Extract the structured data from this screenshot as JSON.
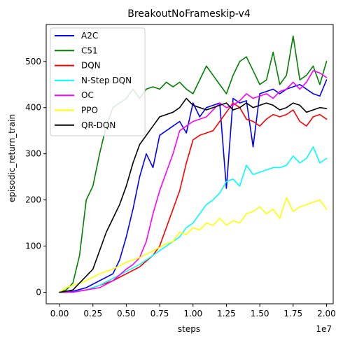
{
  "chart_data": {
    "type": "line",
    "title": "BreakoutNoFrameskip-v4",
    "xlabel": "steps",
    "ylabel": "episodic_return_train",
    "x_offset_label": "1e7",
    "xlim": [
      -0.1,
      2.05
    ],
    "ylim": [
      -25,
      580
    ],
    "x_tick_values": [
      0.0,
      0.25,
      0.5,
      0.75,
      1.0,
      1.25,
      1.5,
      1.75,
      2.0
    ],
    "x_tick_labels": [
      "0.00",
      "0.25",
      "0.50",
      "0.75",
      "1.00",
      "1.25",
      "1.50",
      "1.75",
      "2.00"
    ],
    "y_tick_values": [
      0,
      100,
      200,
      300,
      400,
      500
    ],
    "y_tick_labels": [
      "0",
      "100",
      "200",
      "300",
      "400",
      "500"
    ],
    "grid": false,
    "legend_position": "top-left",
    "series": [
      {
        "name": "A2C",
        "color": "#0000ff",
        "points": [
          [
            0,
            0
          ],
          [
            0.1,
            2
          ],
          [
            0.2,
            10
          ],
          [
            0.3,
            25
          ],
          [
            0.4,
            40
          ],
          [
            0.45,
            70
          ],
          [
            0.5,
            120
          ],
          [
            0.55,
            180
          ],
          [
            0.6,
            250
          ],
          [
            0.65,
            300
          ],
          [
            0.7,
            270
          ],
          [
            0.75,
            340
          ],
          [
            0.8,
            350
          ],
          [
            0.85,
            360
          ],
          [
            0.9,
            370
          ],
          [
            0.95,
            345
          ],
          [
            1.0,
            410
          ],
          [
            1.05,
            380
          ],
          [
            1.1,
            400
          ],
          [
            1.15,
            405
          ],
          [
            1.2,
            410
          ],
          [
            1.25,
            225
          ],
          [
            1.3,
            420
          ],
          [
            1.35,
            410
          ],
          [
            1.4,
            415
          ],
          [
            1.45,
            315
          ],
          [
            1.5,
            430
          ],
          [
            1.55,
            435
          ],
          [
            1.6,
            440
          ],
          [
            1.65,
            430
          ],
          [
            1.7,
            440
          ],
          [
            1.75,
            445
          ],
          [
            1.8,
            450
          ],
          [
            1.85,
            440
          ],
          [
            1.9,
            430
          ],
          [
            1.95,
            425
          ],
          [
            2.0,
            460
          ]
        ]
      },
      {
        "name": "C51",
        "color": "#008000",
        "points": [
          [
            0,
            0
          ],
          [
            0.05,
            5
          ],
          [
            0.1,
            20
          ],
          [
            0.15,
            80
          ],
          [
            0.2,
            200
          ],
          [
            0.25,
            230
          ],
          [
            0.3,
            300
          ],
          [
            0.35,
            360
          ],
          [
            0.4,
            400
          ],
          [
            0.45,
            410
          ],
          [
            0.5,
            420
          ],
          [
            0.55,
            440
          ],
          [
            0.6,
            420
          ],
          [
            0.65,
            440
          ],
          [
            0.7,
            445
          ],
          [
            0.75,
            440
          ],
          [
            0.8,
            455
          ],
          [
            0.85,
            445
          ],
          [
            0.9,
            455
          ],
          [
            0.95,
            440
          ],
          [
            1.0,
            430
          ],
          [
            1.05,
            460
          ],
          [
            1.1,
            490
          ],
          [
            1.15,
            470
          ],
          [
            1.2,
            450
          ],
          [
            1.25,
            430
          ],
          [
            1.3,
            470
          ],
          [
            1.35,
            500
          ],
          [
            1.4,
            510
          ],
          [
            1.45,
            480
          ],
          [
            1.5,
            450
          ],
          [
            1.55,
            460
          ],
          [
            1.6,
            520
          ],
          [
            1.65,
            450
          ],
          [
            1.7,
            470
          ],
          [
            1.75,
            555
          ],
          [
            1.8,
            460
          ],
          [
            1.85,
            470
          ],
          [
            1.9,
            490
          ],
          [
            1.95,
            450
          ],
          [
            2.0,
            500
          ]
        ]
      },
      {
        "name": "DQN",
        "color": "#ff0000",
        "points": [
          [
            0,
            0
          ],
          [
            0.1,
            0
          ],
          [
            0.2,
            5
          ],
          [
            0.3,
            15
          ],
          [
            0.4,
            25
          ],
          [
            0.5,
            40
          ],
          [
            0.6,
            55
          ],
          [
            0.7,
            80
          ],
          [
            0.75,
            100
          ],
          [
            0.8,
            140
          ],
          [
            0.85,
            180
          ],
          [
            0.9,
            220
          ],
          [
            0.95,
            280
          ],
          [
            1.0,
            330
          ],
          [
            1.05,
            340
          ],
          [
            1.1,
            345
          ],
          [
            1.15,
            350
          ],
          [
            1.2,
            370
          ],
          [
            1.25,
            390
          ],
          [
            1.3,
            410
          ],
          [
            1.35,
            400
          ],
          [
            1.4,
            375
          ],
          [
            1.45,
            370
          ],
          [
            1.5,
            360
          ],
          [
            1.55,
            375
          ],
          [
            1.6,
            385
          ],
          [
            1.65,
            380
          ],
          [
            1.7,
            385
          ],
          [
            1.75,
            395
          ],
          [
            1.8,
            370
          ],
          [
            1.85,
            360
          ],
          [
            1.9,
            380
          ],
          [
            1.95,
            385
          ],
          [
            2.0,
            375
          ]
        ]
      },
      {
        "name": "N-Step DQN",
        "color": "#00ffff",
        "points": [
          [
            0,
            0
          ],
          [
            0.1,
            0
          ],
          [
            0.2,
            5
          ],
          [
            0.3,
            15
          ],
          [
            0.4,
            30
          ],
          [
            0.5,
            45
          ],
          [
            0.6,
            60
          ],
          [
            0.7,
            80
          ],
          [
            0.8,
            100
          ],
          [
            0.9,
            120
          ],
          [
            0.95,
            140
          ],
          [
            1.0,
            150
          ],
          [
            1.05,
            170
          ],
          [
            1.1,
            190
          ],
          [
            1.15,
            200
          ],
          [
            1.2,
            215
          ],
          [
            1.25,
            240
          ],
          [
            1.3,
            245
          ],
          [
            1.35,
            230
          ],
          [
            1.4,
            275
          ],
          [
            1.45,
            255
          ],
          [
            1.5,
            260
          ],
          [
            1.55,
            265
          ],
          [
            1.6,
            270
          ],
          [
            1.65,
            270
          ],
          [
            1.7,
            275
          ],
          [
            1.75,
            295
          ],
          [
            1.8,
            280
          ],
          [
            1.85,
            290
          ],
          [
            1.9,
            315
          ],
          [
            1.95,
            280
          ],
          [
            2.0,
            290
          ]
        ]
      },
      {
        "name": "OC",
        "color": "#ff00ff",
        "points": [
          [
            0,
            0
          ],
          [
            0.1,
            0
          ],
          [
            0.2,
            5
          ],
          [
            0.3,
            10
          ],
          [
            0.4,
            25
          ],
          [
            0.5,
            50
          ],
          [
            0.55,
            60
          ],
          [
            0.6,
            75
          ],
          [
            0.65,
            110
          ],
          [
            0.7,
            170
          ],
          [
            0.75,
            220
          ],
          [
            0.8,
            260
          ],
          [
            0.85,
            300
          ],
          [
            0.9,
            350
          ],
          [
            0.95,
            360
          ],
          [
            1.0,
            370
          ],
          [
            1.05,
            375
          ],
          [
            1.1,
            380
          ],
          [
            1.15,
            395
          ],
          [
            1.2,
            410
          ],
          [
            1.25,
            400
          ],
          [
            1.3,
            405
          ],
          [
            1.35,
            415
          ],
          [
            1.4,
            430
          ],
          [
            1.45,
            420
          ],
          [
            1.5,
            425
          ],
          [
            1.55,
            430
          ],
          [
            1.6,
            420
          ],
          [
            1.65,
            435
          ],
          [
            1.7,
            440
          ],
          [
            1.75,
            455
          ],
          [
            1.8,
            440
          ],
          [
            1.85,
            455
          ],
          [
            1.9,
            480
          ],
          [
            1.95,
            475
          ],
          [
            2.0,
            465
          ]
        ]
      },
      {
        "name": "PPO",
        "color": "#ffff00",
        "points": [
          [
            0,
            0
          ],
          [
            0.05,
            10
          ],
          [
            0.1,
            15
          ],
          [
            0.15,
            20
          ],
          [
            0.2,
            25
          ],
          [
            0.3,
            40
          ],
          [
            0.4,
            50
          ],
          [
            0.5,
            65
          ],
          [
            0.6,
            75
          ],
          [
            0.7,
            90
          ],
          [
            0.8,
            105
          ],
          [
            0.85,
            110
          ],
          [
            0.9,
            130
          ],
          [
            0.95,
            125
          ],
          [
            1.0,
            140
          ],
          [
            1.05,
            135
          ],
          [
            1.1,
            150
          ],
          [
            1.15,
            145
          ],
          [
            1.2,
            160
          ],
          [
            1.25,
            145
          ],
          [
            1.3,
            155
          ],
          [
            1.35,
            150
          ],
          [
            1.4,
            170
          ],
          [
            1.45,
            175
          ],
          [
            1.5,
            185
          ],
          [
            1.55,
            170
          ],
          [
            1.6,
            180
          ],
          [
            1.65,
            160
          ],
          [
            1.7,
            205
          ],
          [
            1.75,
            175
          ],
          [
            1.8,
            185
          ],
          [
            1.85,
            190
          ],
          [
            1.9,
            195
          ],
          [
            1.95,
            200
          ],
          [
            2.0,
            180
          ]
        ]
      },
      {
        "name": "QR-DQN",
        "color": "#000000",
        "points": [
          [
            0,
            0
          ],
          [
            0.05,
            2
          ],
          [
            0.1,
            5
          ],
          [
            0.15,
            20
          ],
          [
            0.2,
            35
          ],
          [
            0.25,
            50
          ],
          [
            0.3,
            90
          ],
          [
            0.35,
            130
          ],
          [
            0.4,
            160
          ],
          [
            0.45,
            190
          ],
          [
            0.5,
            230
          ],
          [
            0.55,
            280
          ],
          [
            0.6,
            320
          ],
          [
            0.65,
            340
          ],
          [
            0.7,
            360
          ],
          [
            0.75,
            380
          ],
          [
            0.8,
            385
          ],
          [
            0.85,
            390
          ],
          [
            0.9,
            400
          ],
          [
            0.95,
            420
          ],
          [
            1.0,
            405
          ],
          [
            1.05,
            400
          ],
          [
            1.1,
            395
          ],
          [
            1.15,
            400
          ],
          [
            1.2,
            405
          ],
          [
            1.25,
            410
          ],
          [
            1.3,
            395
          ],
          [
            1.35,
            400
          ],
          [
            1.4,
            410
          ],
          [
            1.45,
            400
          ],
          [
            1.5,
            405
          ],
          [
            1.55,
            410
          ],
          [
            1.6,
            405
          ],
          [
            1.65,
            395
          ],
          [
            1.7,
            400
          ],
          [
            1.75,
            410
          ],
          [
            1.8,
            405
          ],
          [
            1.85,
            390
          ],
          [
            1.9,
            395
          ],
          [
            1.95,
            400
          ],
          [
            2.0,
            398
          ]
        ]
      }
    ]
  }
}
